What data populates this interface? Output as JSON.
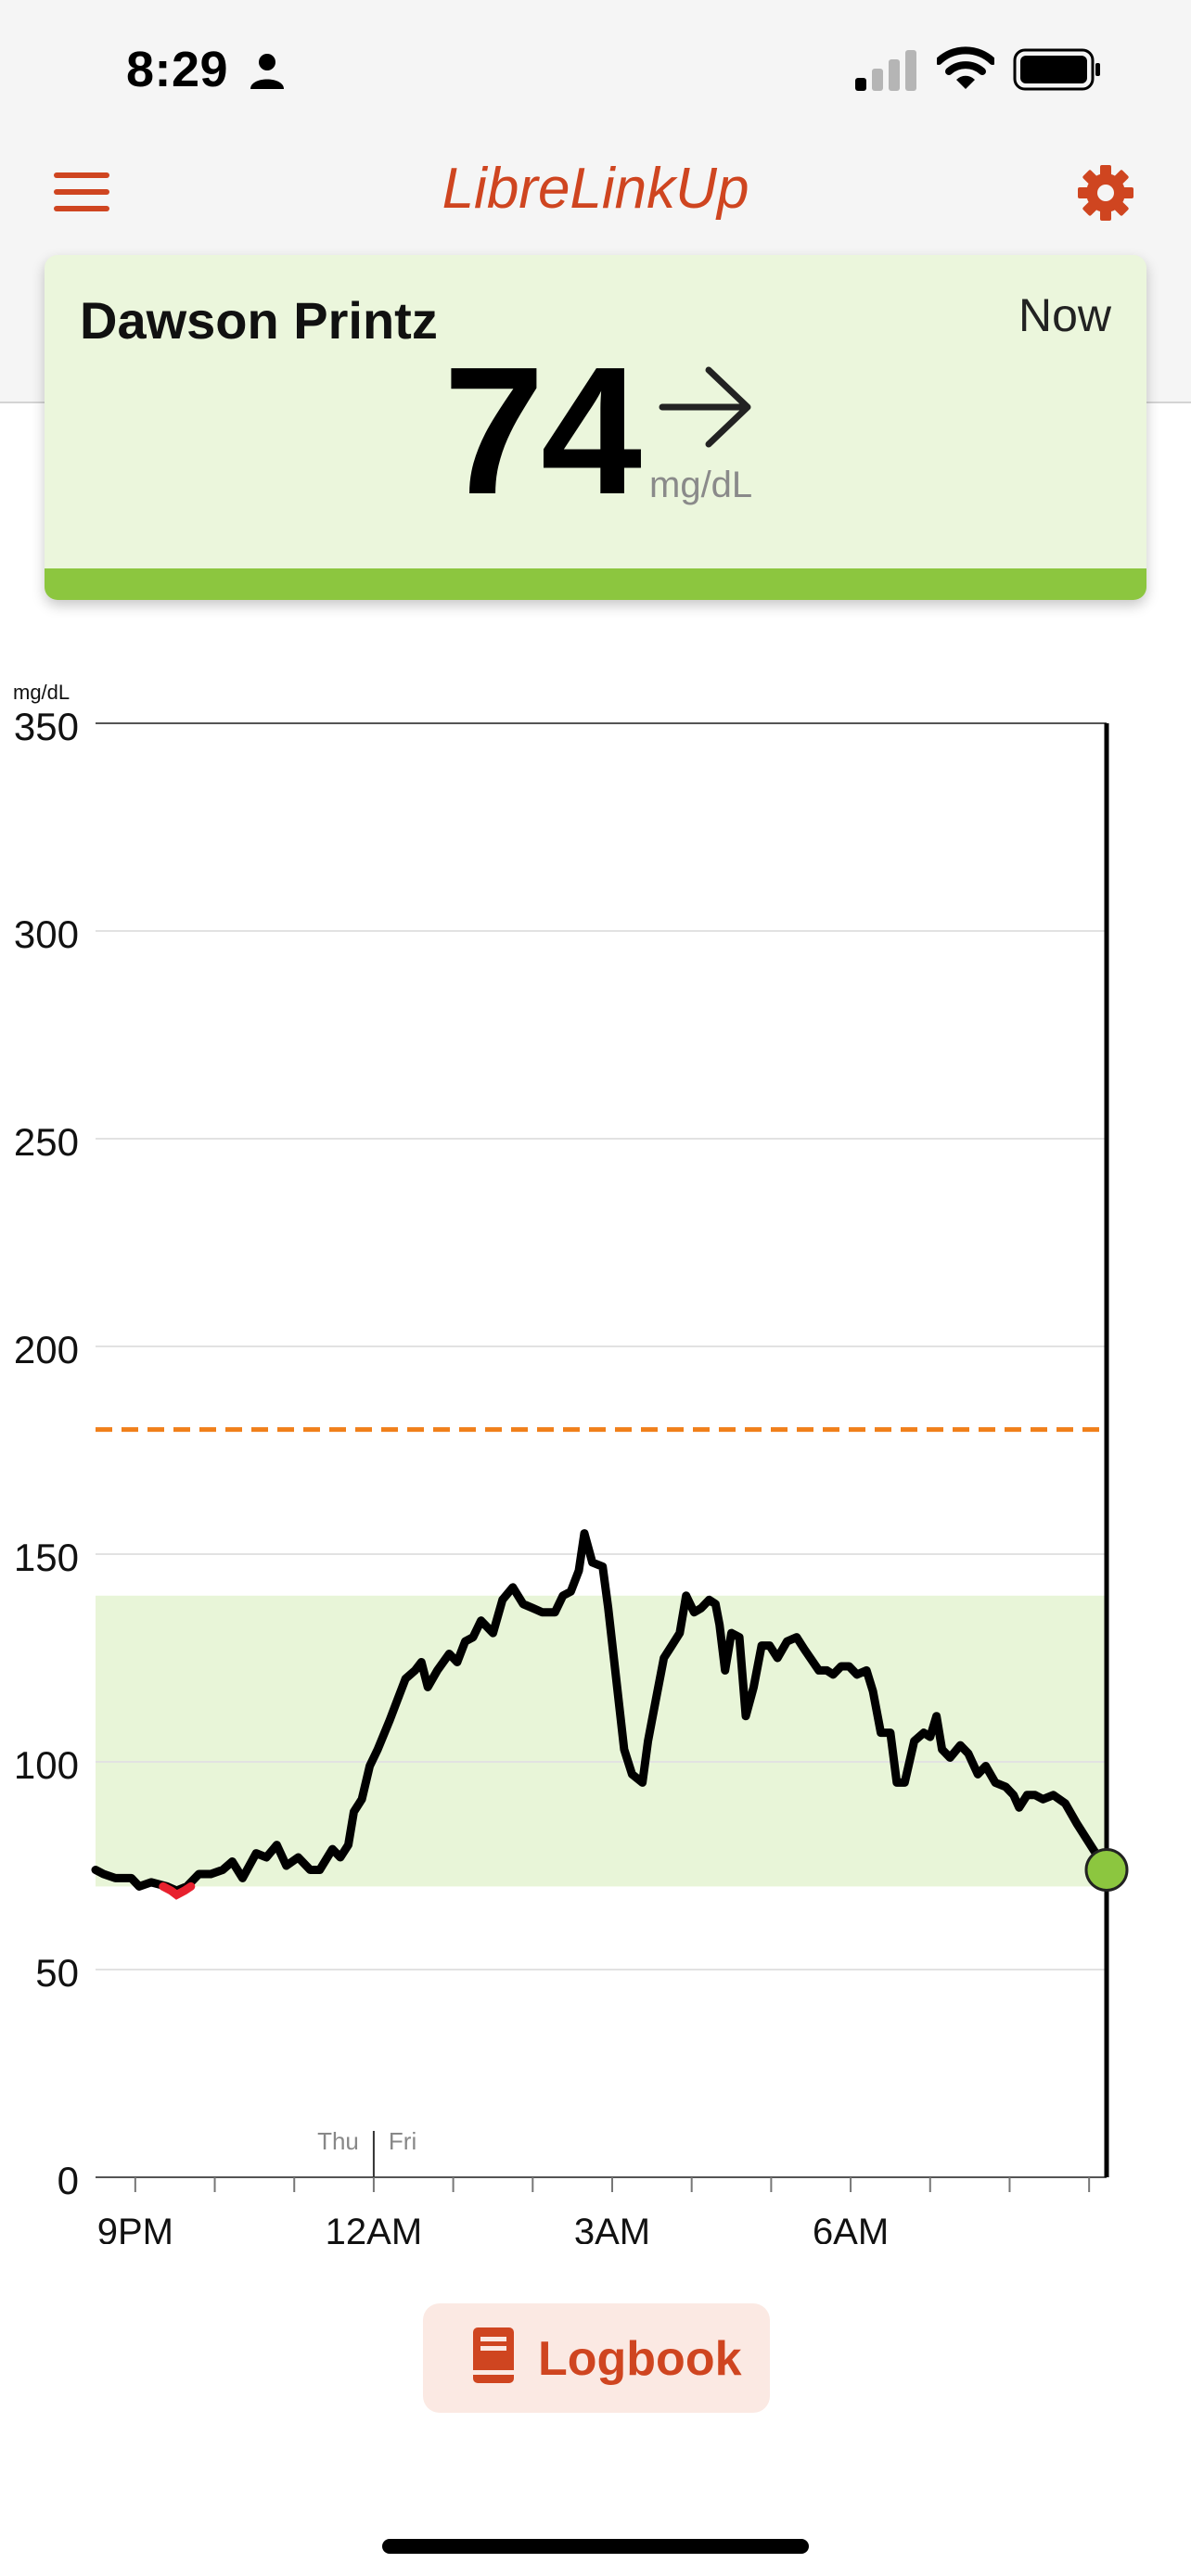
{
  "status_bar": {
    "time": "8:29"
  },
  "header": {
    "title": "LibreLinkUp"
  },
  "reading": {
    "patient_name": "Dawson Printz",
    "time_label": "Now",
    "value": "74",
    "unit": "mg/dL",
    "trend": "arrow-right-icon"
  },
  "chart_data": {
    "type": "line",
    "ylabel": "mg/dL",
    "ylim": [
      0,
      350
    ],
    "y_ticks": [
      "0",
      "50",
      "100",
      "150",
      "200",
      "250",
      "300",
      "350"
    ],
    "x_tick_labels": [
      {
        "label": "9PM",
        "hour": 21
      },
      {
        "label": "12AM",
        "hour": 24
      },
      {
        "label": "3AM",
        "hour": 27
      },
      {
        "label": "6AM",
        "hour": 30
      }
    ],
    "day_labels": {
      "before": "Thu",
      "after": "Fri",
      "hour": 24
    },
    "x_range_hours": [
      20.5,
      32.5
    ],
    "target_range": [
      70,
      140
    ],
    "high_threshold": 180,
    "colors": {
      "line": "#000000",
      "low_segment": "#e8212e",
      "target": "#e8f5d8",
      "threshold": "#f07f1a",
      "current": "#8cc63f"
    },
    "series": [
      {
        "values": [
          [
            20.5,
            74
          ],
          [
            20.6,
            73
          ],
          [
            20.75,
            72
          ],
          [
            20.95,
            72
          ],
          [
            21.05,
            70
          ],
          [
            21.2,
            71
          ],
          [
            21.4,
            70
          ],
          [
            21.52,
            69
          ],
          [
            21.65,
            70
          ],
          [
            21.8,
            73
          ],
          [
            21.95,
            73
          ],
          [
            22.1,
            74
          ],
          [
            22.22,
            76
          ],
          [
            22.35,
            72
          ],
          [
            22.52,
            78
          ],
          [
            22.65,
            77
          ],
          [
            22.78,
            80
          ],
          [
            22.9,
            75
          ],
          [
            23.05,
            77
          ],
          [
            23.2,
            74
          ],
          [
            23.32,
            74
          ],
          [
            23.48,
            79
          ],
          [
            23.58,
            77
          ],
          [
            23.68,
            80
          ],
          [
            23.75,
            88
          ],
          [
            23.85,
            91
          ],
          [
            23.95,
            99
          ],
          [
            24.05,
            103
          ],
          [
            24.2,
            110
          ],
          [
            24.3,
            115
          ],
          [
            24.4,
            120
          ],
          [
            24.52,
            122
          ],
          [
            24.6,
            124
          ],
          [
            24.68,
            118
          ],
          [
            24.8,
            122
          ],
          [
            24.95,
            126
          ],
          [
            25.05,
            124
          ],
          [
            25.15,
            129
          ],
          [
            25.25,
            130
          ],
          [
            25.35,
            134
          ],
          [
            25.5,
            131
          ],
          [
            25.62,
            139
          ],
          [
            25.75,
            142
          ],
          [
            25.88,
            138
          ],
          [
            26.0,
            137
          ],
          [
            26.12,
            136
          ],
          [
            26.28,
            136
          ],
          [
            26.38,
            140
          ],
          [
            26.48,
            141
          ],
          [
            26.58,
            146
          ],
          [
            26.65,
            155
          ],
          [
            26.75,
            148
          ],
          [
            26.88,
            147
          ],
          [
            26.95,
            137
          ],
          [
            27.05,
            120
          ],
          [
            27.15,
            103
          ],
          [
            27.25,
            97
          ],
          [
            27.38,
            95
          ],
          [
            27.45,
            105
          ],
          [
            27.55,
            115
          ],
          [
            27.65,
            125
          ],
          [
            27.75,
            128
          ],
          [
            27.85,
            131
          ],
          [
            27.93,
            140
          ],
          [
            28.03,
            136
          ],
          [
            28.12,
            137
          ],
          [
            28.22,
            139
          ],
          [
            28.3,
            138
          ],
          [
            28.35,
            133
          ],
          [
            28.42,
            122
          ],
          [
            28.5,
            131
          ],
          [
            28.6,
            130
          ],
          [
            28.68,
            111
          ],
          [
            28.78,
            118
          ],
          [
            28.88,
            128
          ],
          [
            28.98,
            128
          ],
          [
            29.08,
            125
          ],
          [
            29.2,
            129
          ],
          [
            29.32,
            130
          ],
          [
            29.42,
            127
          ],
          [
            29.6,
            122
          ],
          [
            29.7,
            122
          ],
          [
            29.78,
            121
          ],
          [
            29.88,
            123
          ],
          [
            29.98,
            123
          ],
          [
            30.08,
            121
          ],
          [
            30.2,
            122
          ],
          [
            30.28,
            117
          ],
          [
            30.38,
            107
          ],
          [
            30.5,
            107
          ],
          [
            30.58,
            95
          ],
          [
            30.68,
            95
          ],
          [
            30.8,
            105
          ],
          [
            30.92,
            107
          ],
          [
            31.0,
            106
          ],
          [
            31.08,
            111
          ],
          [
            31.15,
            103
          ],
          [
            31.25,
            101
          ],
          [
            31.38,
            104
          ],
          [
            31.48,
            102
          ],
          [
            31.6,
            97
          ],
          [
            31.7,
            99
          ],
          [
            31.82,
            95
          ],
          [
            31.95,
            94
          ],
          [
            32.05,
            92
          ],
          [
            32.12,
            89
          ],
          [
            32.22,
            92
          ],
          [
            32.32,
            92
          ],
          [
            32.42,
            91
          ],
          [
            32.55,
            92
          ],
          [
            32.7,
            90
          ],
          [
            32.85,
            85
          ],
          [
            33.05,
            79
          ],
          [
            33.22,
            74
          ]
        ]
      }
    ],
    "low_segment": [
      [
        21.35,
        70
      ],
      [
        21.45,
        69
      ],
      [
        21.52,
        68
      ],
      [
        21.62,
        69
      ],
      [
        21.7,
        70
      ]
    ],
    "current_point": [
      33.22,
      74
    ]
  },
  "logbook": {
    "label": "Logbook"
  }
}
